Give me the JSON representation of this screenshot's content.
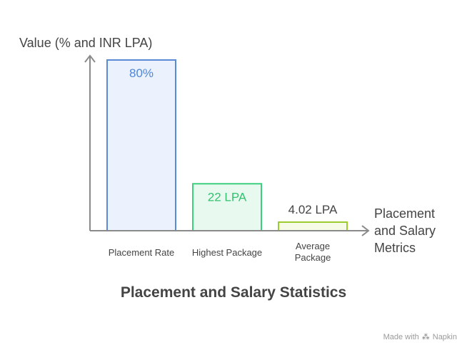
{
  "chart_data": {
    "type": "bar",
    "title": "Placement and Salary Statistics",
    "ylabel": "Value (% and INR LPA)",
    "xlabel": "Placement\nand Salary\nMetrics",
    "categories": [
      "Placement Rate",
      "Highest Package",
      "Average\nPackage"
    ],
    "values": [
      80,
      22,
      4.02
    ],
    "data_labels": [
      "80%",
      "22 LPA",
      "4.02 LPA"
    ],
    "ylim": [
      0,
      85
    ],
    "colors": [
      {
        "fill": "#ebf2fd",
        "stroke": "#5b8ad4",
        "label": "#4f86d6"
      },
      {
        "fill": "#e8faf0",
        "stroke": "#3ccf7e",
        "label": "#35c070"
      },
      {
        "fill": "#f5fbe6",
        "stroke": "#9ccc2e",
        "label": "#444444"
      }
    ]
  },
  "watermark": {
    "prefix": "Made with",
    "brand": "Napkin",
    "logo_icon": "napkin-logo-icon"
  }
}
